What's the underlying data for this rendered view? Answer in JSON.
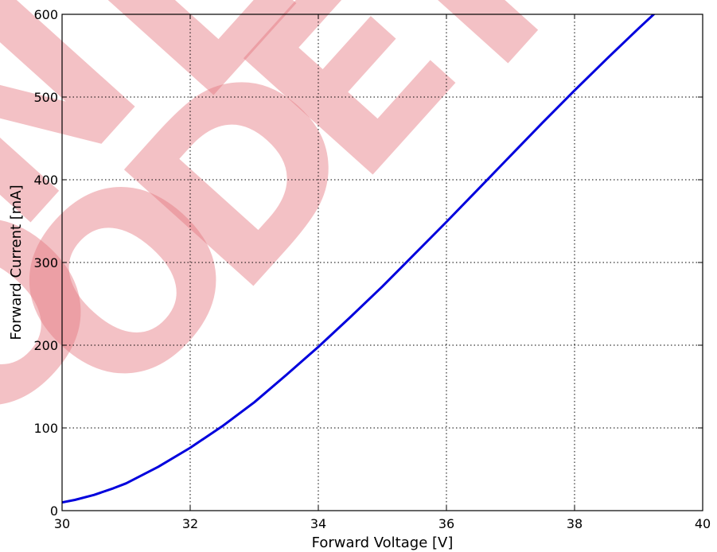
{
  "chart_data": {
    "type": "line",
    "title": "",
    "xlabel": "Forward Voltage [V]",
    "ylabel": "Forward Current [mA]",
    "xlim": [
      30,
      40
    ],
    "ylim": [
      0,
      600
    ],
    "xticks": [
      "30",
      "32",
      "34",
      "36",
      "38",
      "40"
    ],
    "yticks": [
      "0",
      "100",
      "200",
      "300",
      "400",
      "500",
      "600"
    ],
    "grid": true,
    "series": [
      {
        "color": "#0000dd",
        "x": [
          30.0,
          30.2,
          30.5,
          30.8,
          31.0,
          31.5,
          32.0,
          32.5,
          33.0,
          33.5,
          34.0,
          34.5,
          35.0,
          35.5,
          36.0,
          36.5,
          37.0,
          37.5,
          38.0,
          38.5,
          39.0,
          39.5
        ],
        "y": [
          10,
          13,
          19,
          27,
          33,
          53,
          76,
          102,
          131,
          164,
          198,
          234,
          271,
          310,
          349,
          389,
          429,
          469,
          508,
          546,
          583,
          619
        ]
      }
    ]
  },
  "watermark": {
    "text": "NO LONGER ORDERABLE",
    "color": "#e5787f"
  }
}
